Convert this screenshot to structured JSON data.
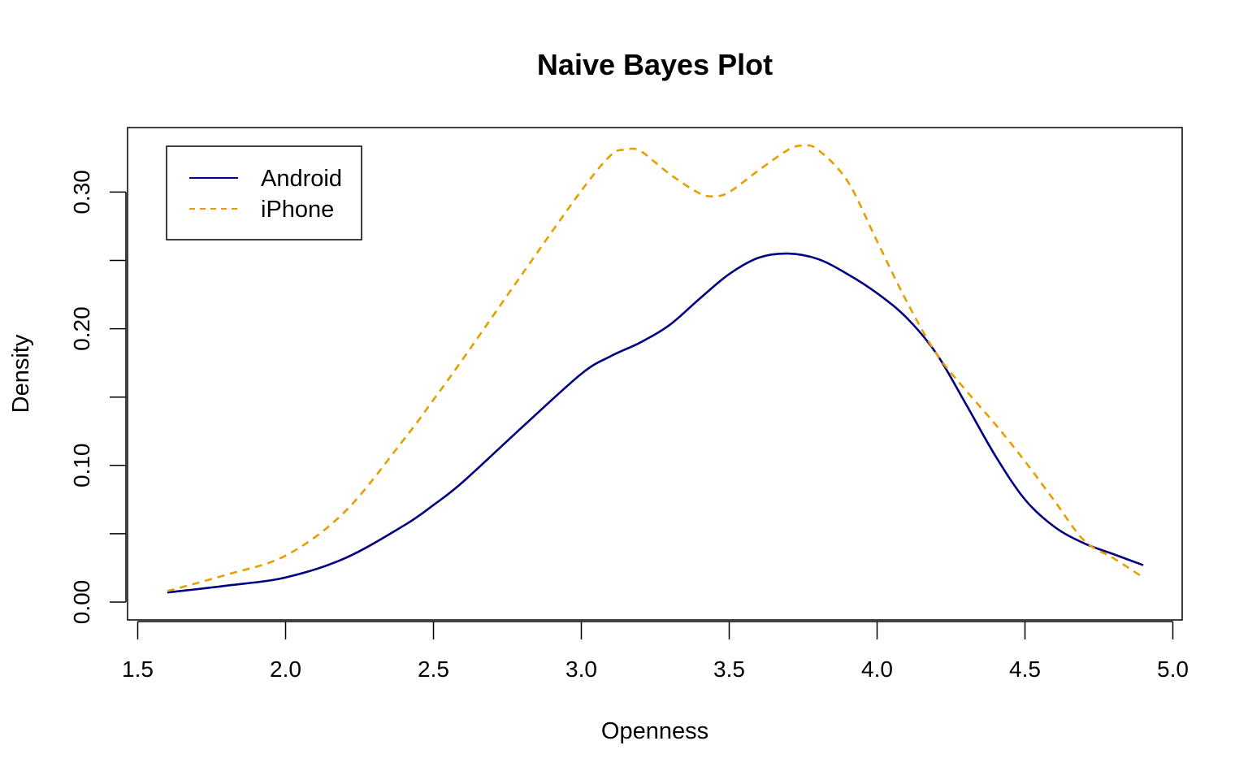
{
  "chart_data": {
    "type": "line",
    "title": "Naive Bayes Plot",
    "xlabel": "Openness",
    "ylabel": "Density",
    "xlim": [
      1.5,
      5.0
    ],
    "ylim": [
      0.0,
      0.335
    ],
    "x_ticks": [
      1.5,
      2.0,
      2.5,
      3.0,
      3.5,
      4.0,
      4.5,
      5.0
    ],
    "x_tick_labels": [
      "1.5",
      "2.0",
      "2.5",
      "3.0",
      "3.5",
      "4.0",
      "4.5",
      "5.0"
    ],
    "y_ticks": [
      0.0,
      0.05,
      0.1,
      0.15,
      0.2,
      0.25,
      0.3
    ],
    "y_tick_labels": [
      "0.00",
      "",
      "0.10",
      "",
      "0.20",
      "",
      "0.30"
    ],
    "grid": false,
    "legend_position": "top-left",
    "series": [
      {
        "name": "Android",
        "color": "#000080",
        "line_style": "solid",
        "x": [
          1.6,
          1.8,
          2.0,
          2.2,
          2.4,
          2.5,
          2.6,
          2.8,
          3.0,
          3.1,
          3.2,
          3.3,
          3.4,
          3.5,
          3.6,
          3.7,
          3.8,
          3.9,
          4.0,
          4.1,
          4.2,
          4.3,
          4.4,
          4.5,
          4.6,
          4.7,
          4.8,
          4.9
        ],
        "y": [
          0.007,
          0.012,
          0.018,
          0.032,
          0.056,
          0.071,
          0.088,
          0.128,
          0.167,
          0.18,
          0.19,
          0.203,
          0.222,
          0.24,
          0.252,
          0.255,
          0.251,
          0.24,
          0.226,
          0.208,
          0.182,
          0.145,
          0.107,
          0.075,
          0.055,
          0.043,
          0.035,
          0.027
        ]
      },
      {
        "name": "iPhone",
        "color": "#E69F00",
        "line_style": "dashed",
        "x": [
          1.6,
          1.8,
          2.0,
          2.2,
          2.4,
          2.5,
          2.6,
          2.8,
          3.0,
          3.1,
          3.15,
          3.2,
          3.3,
          3.4,
          3.45,
          3.5,
          3.6,
          3.7,
          3.75,
          3.8,
          3.9,
          4.0,
          4.1,
          4.2,
          4.3,
          4.4,
          4.5,
          4.6,
          4.7,
          4.8,
          4.9
        ],
        "y": [
          0.008,
          0.02,
          0.034,
          0.066,
          0.119,
          0.148,
          0.178,
          0.24,
          0.301,
          0.327,
          0.331,
          0.33,
          0.313,
          0.299,
          0.297,
          0.3,
          0.316,
          0.331,
          0.334,
          0.331,
          0.308,
          0.264,
          0.22,
          0.182,
          0.155,
          0.13,
          0.103,
          0.074,
          0.045,
          0.032,
          0.018
        ]
      }
    ]
  }
}
